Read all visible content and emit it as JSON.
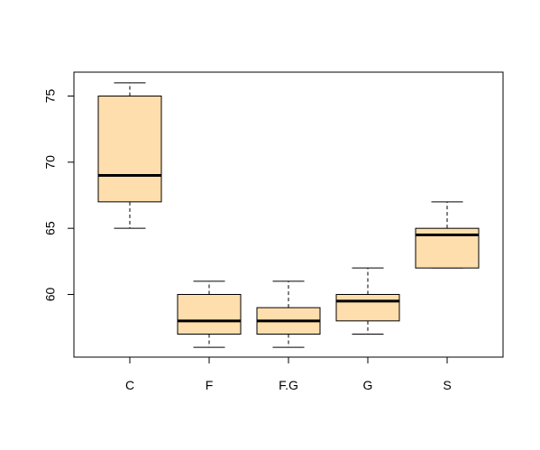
{
  "chart_data": {
    "type": "boxplot",
    "categories": [
      "C",
      "F",
      "F.G",
      "G",
      "S"
    ],
    "boxes": [
      {
        "category": "C",
        "whisker_low": 65,
        "q1": 67,
        "median": 69,
        "q3": 75,
        "whisker_high": 76
      },
      {
        "category": "F",
        "whisker_low": 56,
        "q1": 57,
        "median": 58,
        "q3": 60,
        "whisker_high": 61
      },
      {
        "category": "F.G",
        "whisker_low": 56,
        "q1": 57,
        "median": 58,
        "q3": 59,
        "whisker_high": 61
      },
      {
        "category": "G",
        "whisker_low": 57,
        "q1": 58,
        "median": 59.5,
        "q3": 60,
        "whisker_high": 62
      },
      {
        "category": "S",
        "whisker_low": 62,
        "q1": 62,
        "median": 64.5,
        "q3": 65,
        "whisker_high": 67
      }
    ],
    "y_ticks": [
      60,
      65,
      70,
      75
    ],
    "ylim": [
      55,
      77
    ],
    "title": "",
    "xlabel": "",
    "ylabel": "",
    "grid": false,
    "colors": {
      "box_fill": "#ffdead",
      "box_stroke": "#000000",
      "median": "#000000"
    }
  }
}
